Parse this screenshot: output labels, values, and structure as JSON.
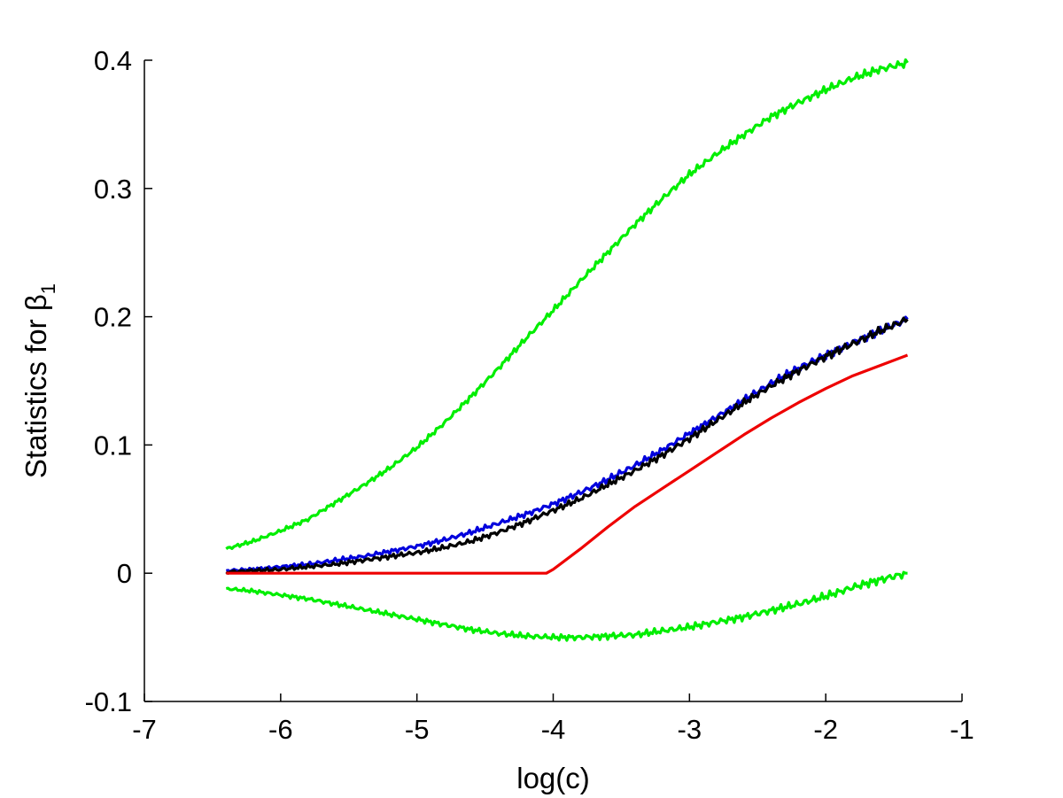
{
  "chart_data": {
    "type": "line",
    "title": "",
    "xlabel": "log(c)",
    "ylabel": {
      "text": "Statistics for ",
      "symbol": "β",
      "subscript": "1"
    },
    "xlim": [
      -7,
      -1
    ],
    "ylim": [
      -0.1,
      0.4
    ],
    "xticks": [
      -7,
      -6,
      -5,
      -4,
      -3,
      -2,
      -1
    ],
    "yticks": [
      -0.1,
      0,
      0.1,
      0.2,
      0.3,
      0.4
    ],
    "xtick_labels": [
      "-7",
      "-6",
      "-5",
      "-4",
      "-3",
      "-2",
      "-1"
    ],
    "ytick_labels": [
      "-0.1",
      "0",
      "0.1",
      "0.2",
      "0.3",
      "0.4"
    ],
    "grid": false,
    "legend": "none",
    "series": [
      {
        "color": "#00ee00",
        "x": [
          -6.4,
          -6.2,
          -6.0,
          -5.8,
          -5.6,
          -5.4,
          -5.2,
          -5.0,
          -4.8,
          -4.6,
          -4.4,
          -4.2,
          -4.0,
          -3.8,
          -3.6,
          -3.4,
          -3.2,
          -3.0,
          -2.8,
          -2.6,
          -2.4,
          -2.2,
          -2.0,
          -1.8,
          -1.6,
          -1.4
        ],
        "y": [
          0.019,
          0.025,
          0.033,
          0.042,
          0.055,
          0.068,
          0.082,
          0.098,
          0.117,
          0.138,
          0.16,
          0.183,
          0.205,
          0.228,
          0.25,
          0.272,
          0.292,
          0.311,
          0.327,
          0.342,
          0.356,
          0.367,
          0.377,
          0.386,
          0.393,
          0.398
        ]
      },
      {
        "color": "#00ee00",
        "x": [
          -6.4,
          -6.2,
          -6.0,
          -5.8,
          -5.6,
          -5.4,
          -5.2,
          -5.0,
          -4.8,
          -4.6,
          -4.4,
          -4.2,
          -4.0,
          -3.8,
          -3.6,
          -3.4,
          -3.2,
          -3.0,
          -2.8,
          -2.6,
          -2.4,
          -2.2,
          -2.0,
          -1.8,
          -1.6,
          -1.4
        ],
        "y": [
          -0.012,
          -0.014,
          -0.017,
          -0.02,
          -0.024,
          -0.028,
          -0.032,
          -0.036,
          -0.04,
          -0.044,
          -0.047,
          -0.049,
          -0.05,
          -0.05,
          -0.049,
          -0.048,
          -0.045,
          -0.042,
          -0.038,
          -0.034,
          -0.029,
          -0.024,
          -0.018,
          -0.011,
          -0.005,
          0.0
        ]
      },
      {
        "color": "#0000dd",
        "x": [
          -6.4,
          -6.2,
          -6.0,
          -5.8,
          -5.6,
          -5.4,
          -5.2,
          -5.0,
          -4.8,
          -4.6,
          -4.4,
          -4.2,
          -4.0,
          -3.8,
          -3.6,
          -3.4,
          -3.2,
          -3.0,
          -2.8,
          -2.6,
          -2.4,
          -2.2,
          -2.0,
          -1.8,
          -1.6,
          -1.4
        ],
        "y": [
          0.002,
          0.003,
          0.005,
          0.007,
          0.01,
          0.013,
          0.017,
          0.021,
          0.026,
          0.032,
          0.039,
          0.046,
          0.054,
          0.063,
          0.073,
          0.084,
          0.096,
          0.109,
          0.122,
          0.135,
          0.148,
          0.16,
          0.17,
          0.18,
          0.189,
          0.198
        ]
      },
      {
        "color": "#000000",
        "x": [
          -6.4,
          -6.2,
          -6.0,
          -5.8,
          -5.6,
          -5.4,
          -5.2,
          -5.0,
          -4.8,
          -4.6,
          -4.4,
          -4.2,
          -4.0,
          -3.8,
          -3.6,
          -3.4,
          -3.2,
          -3.0,
          -2.8,
          -2.6,
          -2.4,
          -2.2,
          -2.0,
          -1.8,
          -1.6,
          -1.4
        ],
        "y": [
          0.001,
          0.002,
          0.003,
          0.005,
          0.007,
          0.01,
          0.013,
          0.016,
          0.02,
          0.025,
          0.032,
          0.04,
          0.049,
          0.058,
          0.069,
          0.08,
          0.092,
          0.105,
          0.119,
          0.133,
          0.146,
          0.158,
          0.169,
          0.179,
          0.189,
          0.198
        ]
      },
      {
        "color": "#ee0000",
        "x": [
          -6.4,
          -6.0,
          -5.5,
          -5.0,
          -4.5,
          -4.05,
          -4.0,
          -3.8,
          -3.6,
          -3.4,
          -3.2,
          -3.0,
          -2.8,
          -2.6,
          -2.4,
          -2.2,
          -2.0,
          -1.8,
          -1.6,
          -1.4
        ],
        "y": [
          0.0,
          0.0,
          0.0,
          0.0,
          0.0,
          0.0,
          0.003,
          0.019,
          0.036,
          0.052,
          0.066,
          0.08,
          0.094,
          0.108,
          0.121,
          0.133,
          0.144,
          0.154,
          0.162,
          0.17
        ]
      }
    ]
  }
}
